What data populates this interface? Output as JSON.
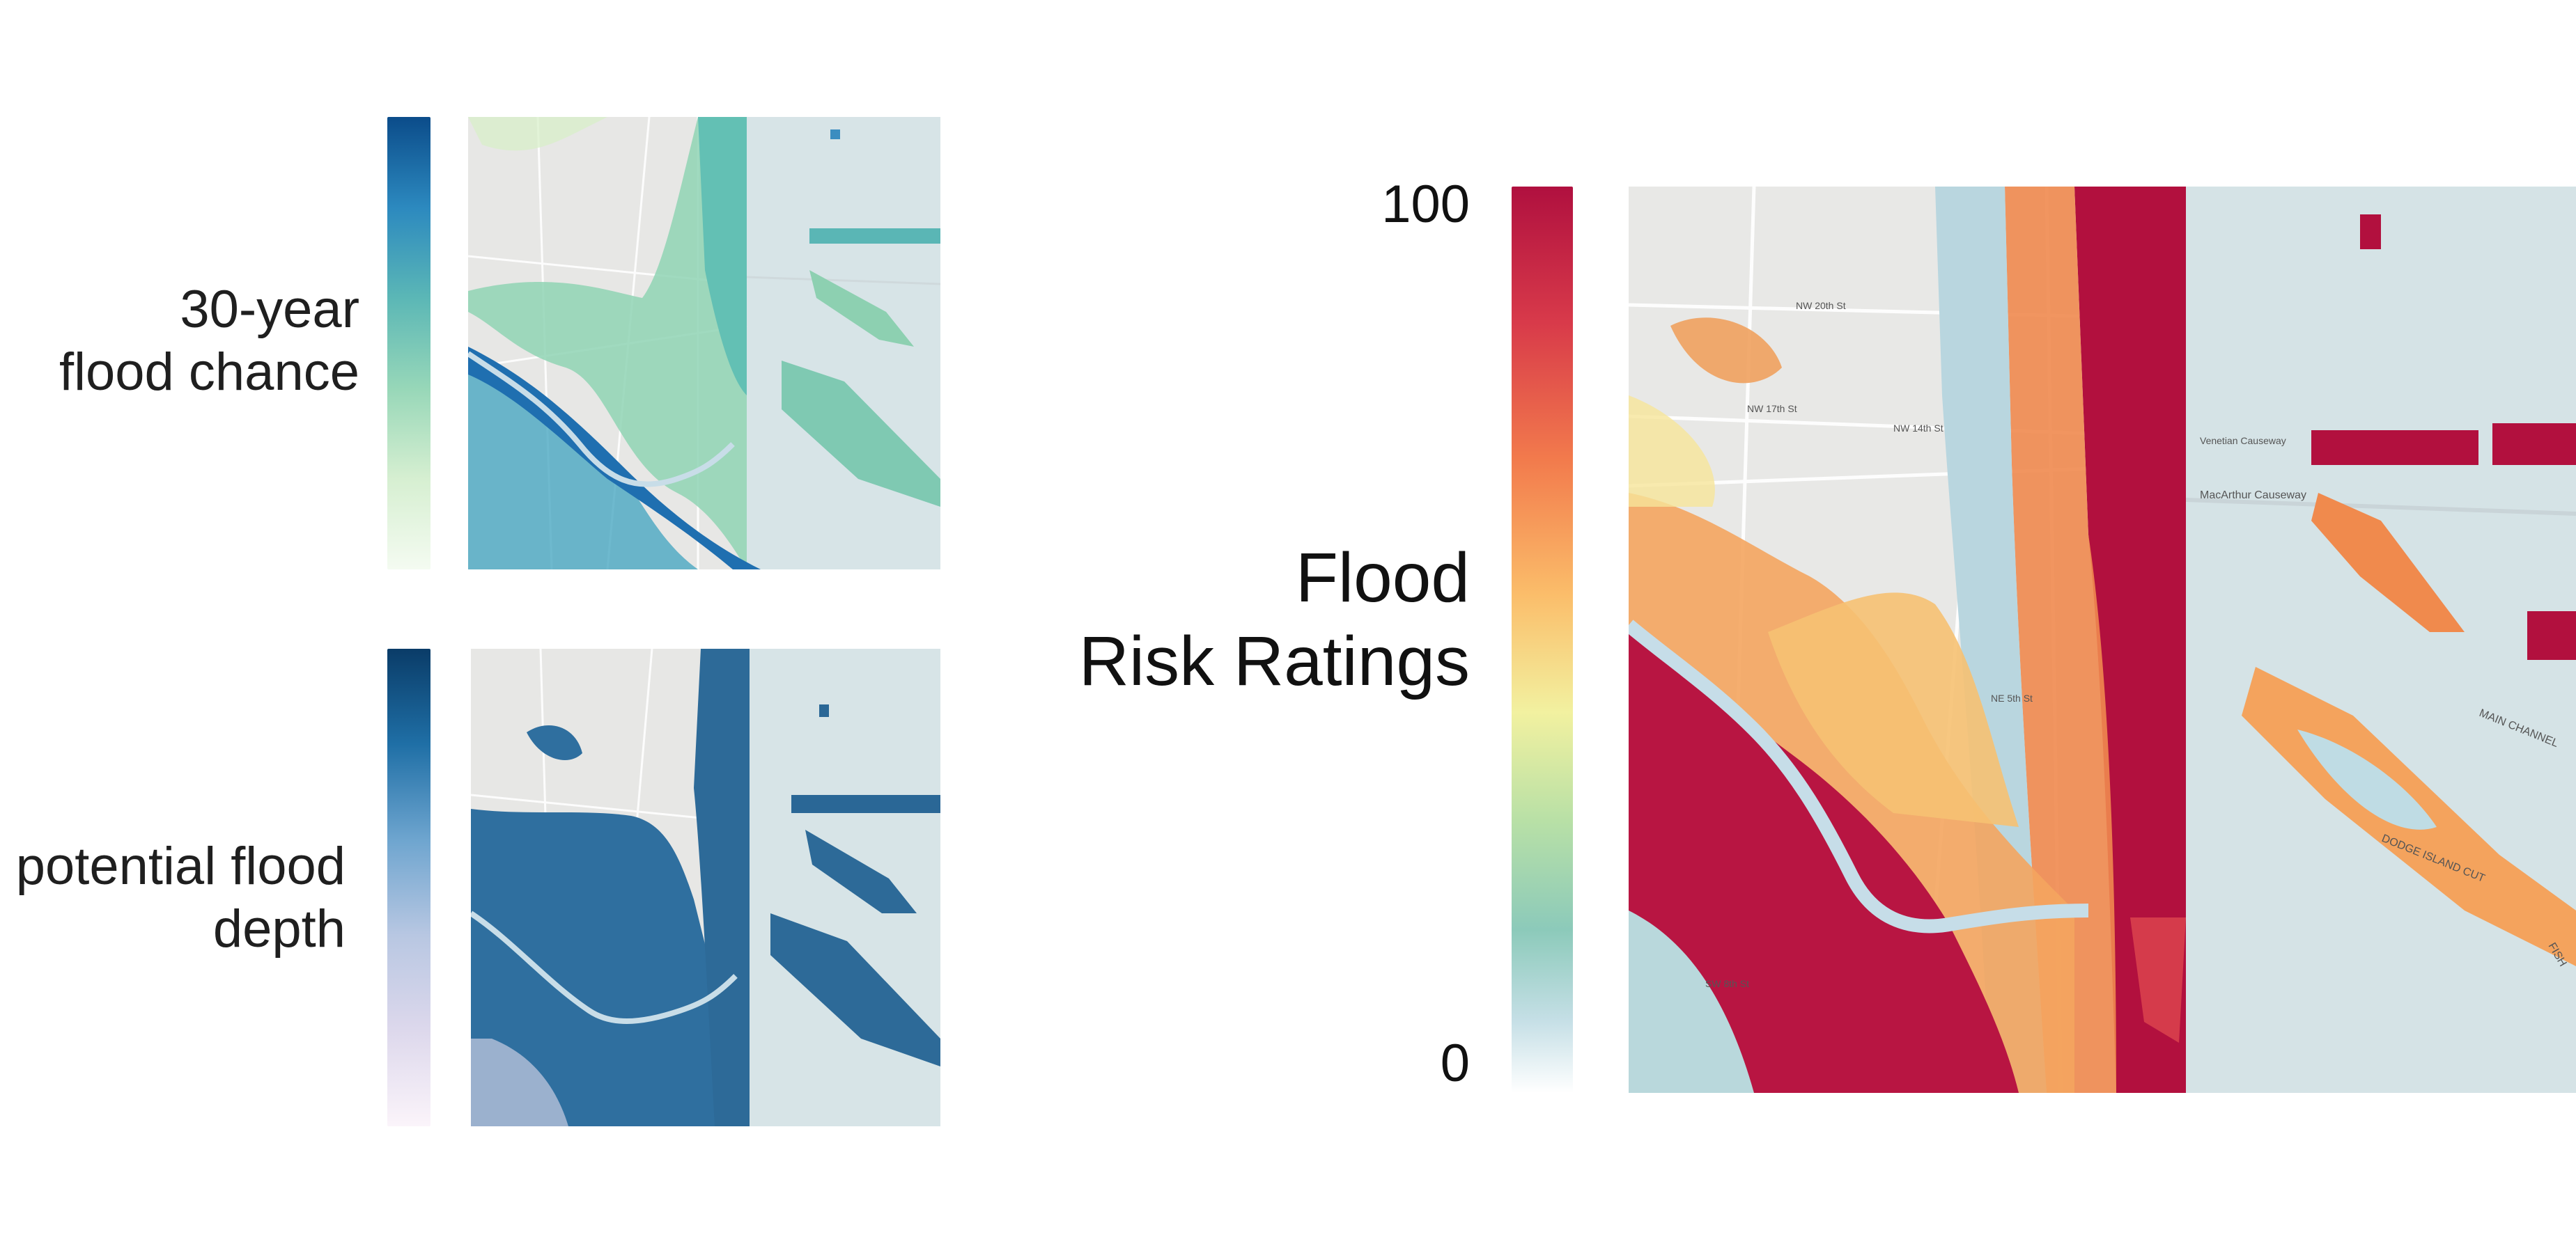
{
  "panels": {
    "flood_chance": {
      "label_lines": [
        "30-year",
        "flood chance"
      ],
      "legend_colors": [
        "#0b4c8a",
        "#2c89bf",
        "#5bb7b6",
        "#97d7b8",
        "#d6efd1",
        "#f4fbf1"
      ]
    },
    "flood_depth": {
      "label_lines": [
        "potential flood",
        "depth"
      ],
      "legend_colors": [
        "#0a3c68",
        "#1f6fa6",
        "#6ea5cf",
        "#b8c7e2",
        "#ddd8ec",
        "#fbf4fa"
      ]
    },
    "risk_rating": {
      "title_lines": [
        "Flood",
        "Risk Ratings"
      ],
      "tick_max": "100",
      "tick_min": "0",
      "legend_colors": [
        "#b0103f",
        "#d83a4a",
        "#f27a4c",
        "#fbbd6a",
        "#f2f1a0",
        "#b8e0a6",
        "#8ccaba",
        "#c5dfe6",
        "#ffffff"
      ]
    }
  },
  "map_labels": {
    "causeway": "MacArthur Causeway",
    "causeway2": "Venetian Causeway",
    "st_20": "NW 20th St",
    "st_17": "NW 17th St",
    "st_14": "NW 14th St",
    "st_5": "NE 5th St",
    "st_8": "SW 8th St",
    "channel": "MAIN CHANNEL",
    "cut": "DODGE ISLAND CUT",
    "fish": "FISH"
  },
  "colors": {
    "land": "#e9e9e7",
    "water": "#d6e3e6",
    "road": "#ffffff",
    "park": "#cfe5c8"
  }
}
